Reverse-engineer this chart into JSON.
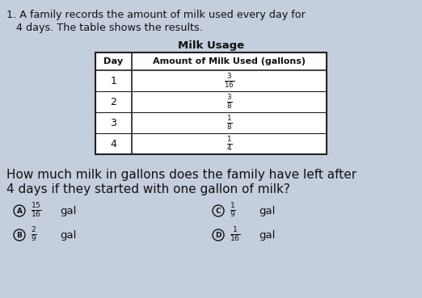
{
  "bg_color": "#c5cedd",
  "title_line1": "1. A family records the amount of milk used every day for",
  "title_line2": "   4 days. The table shows the results.",
  "table_title": "Milk Usage",
  "col_headers": [
    "Day",
    "Amount of Milk Used (gallons)"
  ],
  "rows": [
    [
      "1",
      "$\\frac{3}{16}$"
    ],
    [
      "2",
      "$\\frac{3}{8}$"
    ],
    [
      "3",
      "$\\frac{1}{8}$"
    ],
    [
      "4",
      "$\\frac{1}{4}$"
    ]
  ],
  "question_line1": "How much milk in gallons does the family have left after",
  "question_line2": "4 days if they started with one gallon of milk?",
  "opt_A_label": "A",
  "opt_A_value": "$\\frac{15}{16}$",
  "opt_A_unit": "gal",
  "opt_B_label": "B",
  "opt_B_value": "$\\frac{2}{9}$",
  "opt_B_unit": "gal",
  "opt_C_label": "C",
  "opt_C_value": "$\\frac{1}{9}$",
  "opt_C_unit": "gal",
  "opt_D_label": "D",
  "opt_D_value": "$\\frac{1}{16}$",
  "opt_D_unit": "gal",
  "text_color": "#111111",
  "table_border_color": "#222222",
  "table_fill": "#ffffff"
}
